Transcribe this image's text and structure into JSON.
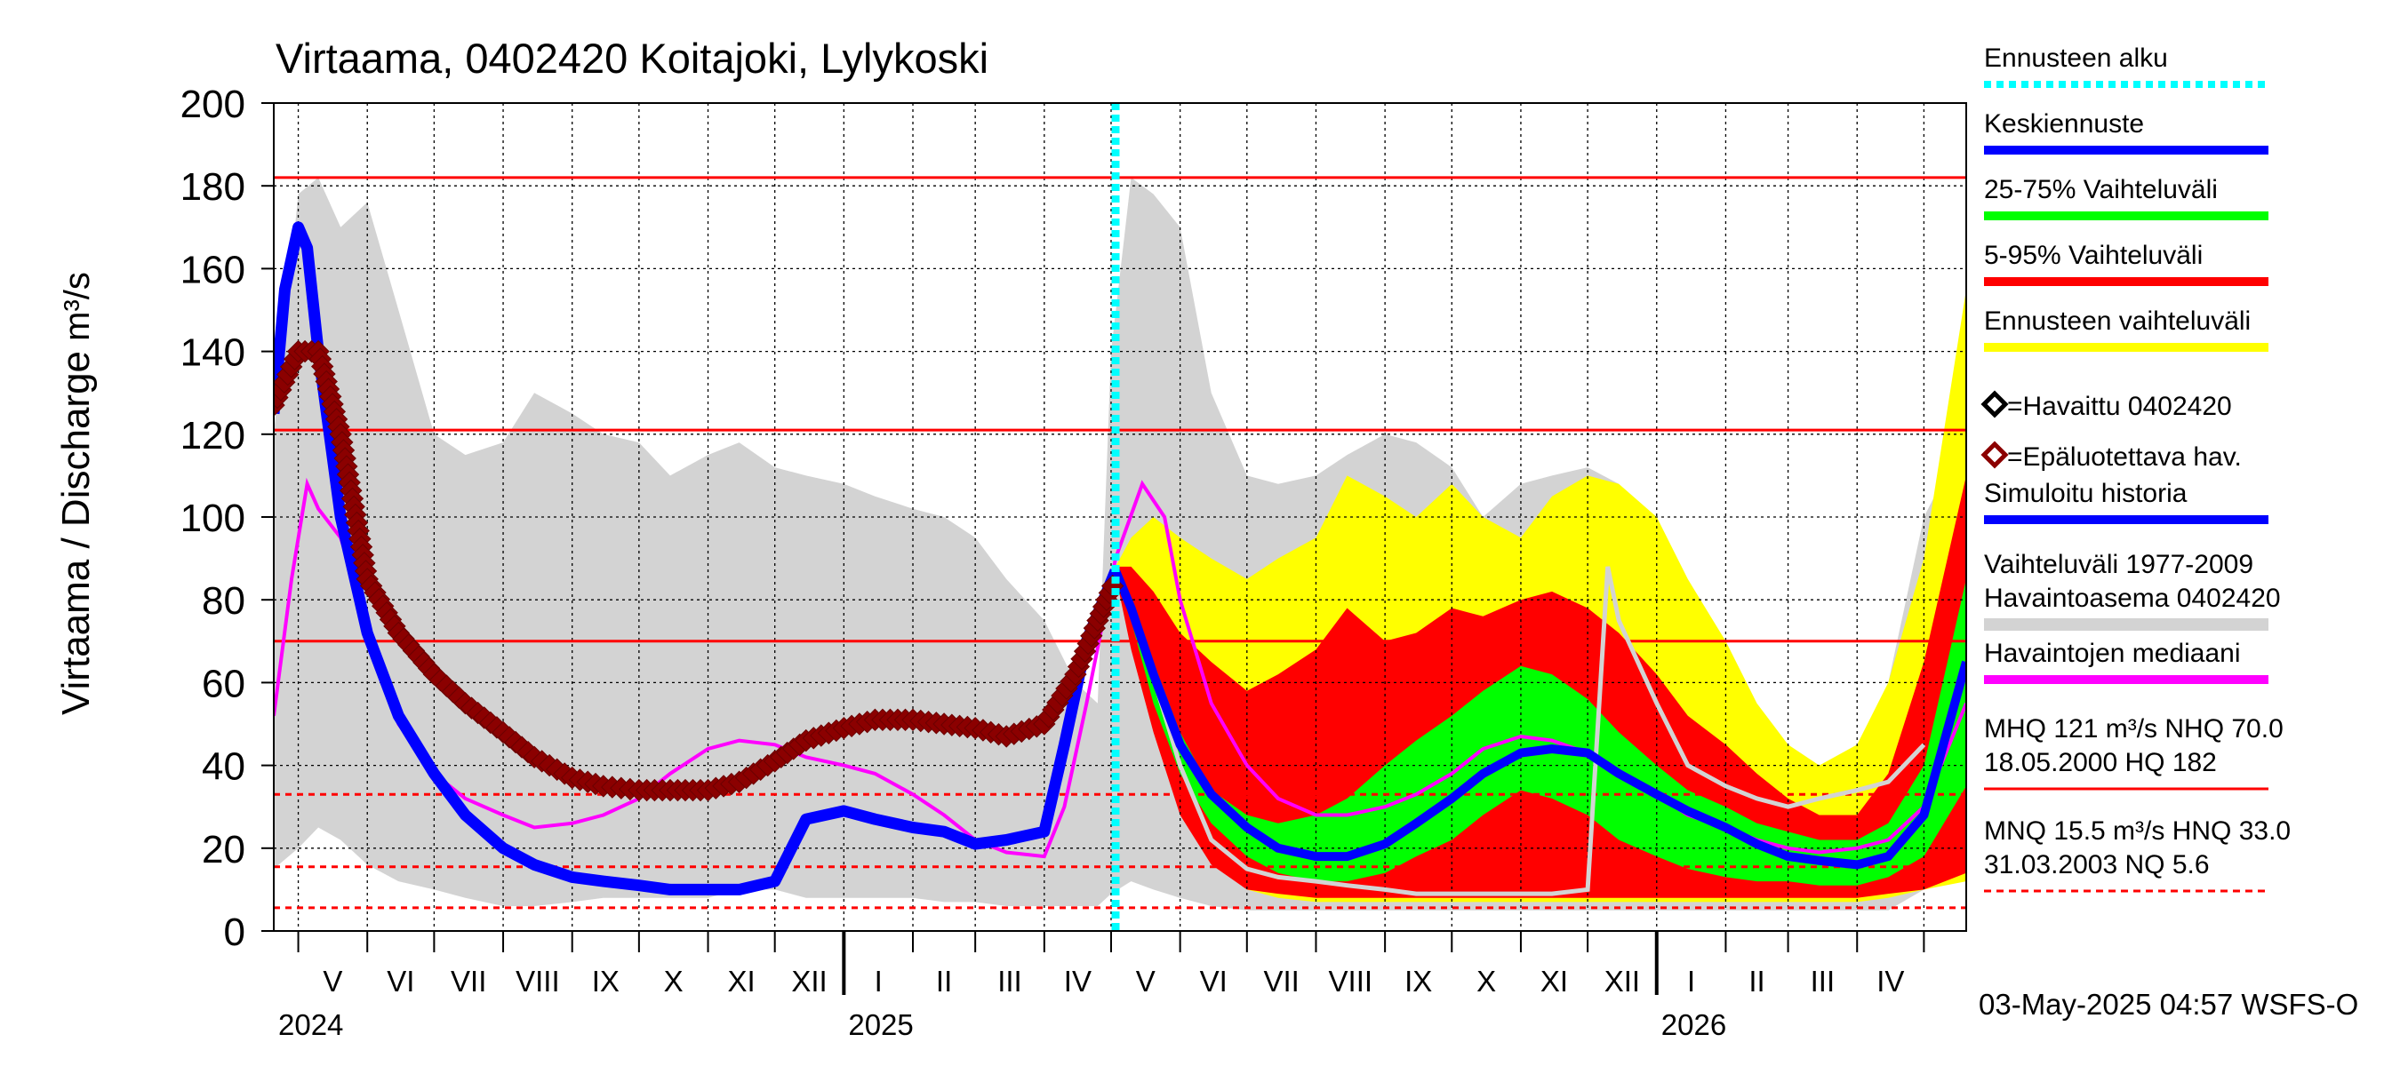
{
  "chart_data": {
    "type": "line",
    "title": "Virtaama, 0402420 Koitajoki, Lylykoski",
    "ylabel": "Virtaama / Discharge",
    "yunit": "m³/s",
    "ylim": [
      0,
      200
    ],
    "yticks": [
      0,
      20,
      40,
      60,
      80,
      100,
      120,
      140,
      160,
      180,
      200
    ],
    "x_start": "2024-04-20",
    "x_end": "2026-05-20",
    "forecast_start": "2025-05-03",
    "months": [
      {
        "label": "V",
        "start": "2024-05-01"
      },
      {
        "label": "VI",
        "start": "2024-06-01"
      },
      {
        "label": "VII",
        "start": "2024-07-01"
      },
      {
        "label": "VIII",
        "start": "2024-08-01"
      },
      {
        "label": "IX",
        "start": "2024-09-01"
      },
      {
        "label": "X",
        "start": "2024-10-01"
      },
      {
        "label": "XI",
        "start": "2024-11-01"
      },
      {
        "label": "XII",
        "start": "2024-12-01"
      },
      {
        "label": "I",
        "start": "2025-01-01"
      },
      {
        "label": "II",
        "start": "2025-02-01"
      },
      {
        "label": "III",
        "start": "2025-03-01"
      },
      {
        "label": "IV",
        "start": "2025-04-01"
      },
      {
        "label": "V",
        "start": "2025-05-01"
      },
      {
        "label": "VI",
        "start": "2025-06-01"
      },
      {
        "label": "VII",
        "start": "2025-07-01"
      },
      {
        "label": "VIII",
        "start": "2025-08-01"
      },
      {
        "label": "IX",
        "start": "2025-09-01"
      },
      {
        "label": "X",
        "start": "2025-10-01"
      },
      {
        "label": "XI",
        "start": "2025-11-01"
      },
      {
        "label": "XII",
        "start": "2025-12-01"
      },
      {
        "label": "I",
        "start": "2026-01-01"
      },
      {
        "label": "II",
        "start": "2026-02-01"
      },
      {
        "label": "III",
        "start": "2026-03-01"
      },
      {
        "label": "IV",
        "start": "2026-04-01"
      },
      {
        "label": "",
        "start": "2026-05-01"
      }
    ],
    "years": [
      {
        "label": "2024",
        "at": "2024-04-20",
        "tick": ""
      },
      {
        "label": "2025",
        "at": "2025-01-01",
        "tick": "2025-01-01"
      },
      {
        "label": "2026",
        "at": "2026-01-01",
        "tick": "2026-01-01"
      }
    ],
    "reference_lines": {
      "solid": [
        182,
        121,
        70
      ],
      "dashed": [
        33,
        15.5,
        5.6
      ]
    },
    "history_band": {
      "name": "Vaihteluväli 1977-2009 Havaintoasema 0402420",
      "color": "#d3d3d3",
      "x": [
        "2024-04-20",
        "2024-05-01",
        "2024-05-10",
        "2024-05-20",
        "2024-06-01",
        "2024-06-15",
        "2024-07-01",
        "2024-07-15",
        "2024-08-01",
        "2024-08-15",
        "2024-09-01",
        "2024-09-15",
        "2024-10-01",
        "2024-10-15",
        "2024-11-01",
        "2024-11-15",
        "2024-12-01",
        "2024-12-15",
        "2025-01-01",
        "2025-01-15",
        "2025-02-01",
        "2025-02-15",
        "2025-03-01",
        "2025-03-15",
        "2025-04-01",
        "2025-04-15",
        "2025-04-25",
        "2025-05-01",
        "2025-05-10",
        "2025-05-20",
        "2025-06-01",
        "2025-06-15",
        "2025-07-01",
        "2025-07-15",
        "2025-08-01",
        "2025-08-15",
        "2025-09-01",
        "2025-09-15",
        "2025-10-01",
        "2025-10-15",
        "2025-11-01",
        "2025-11-15",
        "2025-12-01",
        "2025-12-15",
        "2026-01-01",
        "2026-01-15",
        "2026-02-01",
        "2026-02-15",
        "2026-03-01",
        "2026-03-15",
        "2026-04-01",
        "2026-04-15",
        "2026-05-01",
        "2026-05-20"
      ],
      "high": [
        120,
        178,
        182,
        170,
        176,
        150,
        120,
        115,
        118,
        130,
        125,
        120,
        118,
        110,
        115,
        118,
        112,
        110,
        108,
        105,
        102,
        100,
        95,
        85,
        75,
        60,
        55,
        140,
        182,
        178,
        170,
        130,
        110,
        108,
        110,
        115,
        120,
        118,
        112,
        100,
        108,
        110,
        112,
        108,
        90,
        70,
        55,
        45,
        42,
        40,
        42,
        60,
        100,
        120
      ],
      "low": [
        15,
        20,
        25,
        22,
        16,
        12,
        10,
        8,
        6,
        6,
        7,
        8,
        8,
        8,
        8,
        10,
        10,
        8,
        8,
        8,
        8,
        7,
        7,
        6,
        6,
        6,
        6,
        9,
        12,
        10,
        8,
        6,
        5,
        5,
        5,
        5,
        5,
        5,
        5,
        5,
        5,
        5,
        5,
        5,
        5,
        5,
        5,
        5,
        5,
        5,
        5,
        5,
        10,
        20
      ]
    },
    "forecast_band_full": {
      "name": "Ennusteen vaihteluväli",
      "color": "#ffff00",
      "x": [
        "2025-05-03",
        "2025-05-10",
        "2025-05-20",
        "2025-06-01",
        "2025-06-15",
        "2025-07-01",
        "2025-07-15",
        "2025-08-01",
        "2025-08-15",
        "2025-09-01",
        "2025-09-15",
        "2025-10-01",
        "2025-10-15",
        "2025-11-01",
        "2025-11-15",
        "2025-12-01",
        "2025-12-15",
        "2026-01-01",
        "2026-01-15",
        "2026-02-01",
        "2026-02-15",
        "2026-03-01",
        "2026-03-15",
        "2026-04-01",
        "2026-04-15",
        "2026-05-01",
        "2026-05-20"
      ],
      "high": [
        88,
        95,
        100,
        95,
        90,
        85,
        90,
        95,
        110,
        105,
        100,
        108,
        100,
        95,
        105,
        110,
        108,
        100,
        85,
        70,
        55,
        45,
        40,
        45,
        60,
        90,
        155
      ],
      "low": [
        86,
        70,
        50,
        30,
        18,
        10,
        8,
        7,
        7,
        7,
        7,
        7,
        7,
        7,
        7,
        7,
        7,
        7,
        7,
        7,
        7,
        7,
        7,
        7,
        8,
        10,
        12
      ]
    },
    "band_5_95": {
      "name": "5-95% Vaihteluväli",
      "color": "#ff0000",
      "x": [
        "2025-05-03",
        "2025-05-10",
        "2025-05-20",
        "2025-06-01",
        "2025-06-15",
        "2025-07-01",
        "2025-07-15",
        "2025-08-01",
        "2025-08-15",
        "2025-09-01",
        "2025-09-15",
        "2025-10-01",
        "2025-10-15",
        "2025-11-01",
        "2025-11-15",
        "2025-12-01",
        "2025-12-15",
        "2026-01-01",
        "2026-01-15",
        "2026-02-01",
        "2026-02-15",
        "2026-03-01",
        "2026-03-15",
        "2026-04-01",
        "2026-04-15",
        "2026-05-01",
        "2026-05-20"
      ],
      "high": [
        88,
        88,
        82,
        72,
        65,
        58,
        62,
        68,
        78,
        70,
        72,
        78,
        76,
        80,
        82,
        78,
        72,
        62,
        52,
        45,
        38,
        32,
        28,
        28,
        38,
        65,
        110
      ],
      "low": [
        86,
        68,
        48,
        28,
        16,
        10,
        9,
        8,
        8,
        8,
        8,
        8,
        8,
        8,
        8,
        8,
        8,
        8,
        8,
        8,
        8,
        8,
        8,
        8,
        9,
        10,
        14
      ]
    },
    "band_25_75": {
      "name": "25-75% Vaihteluväli",
      "color": "#00ff00",
      "x": [
        "2025-05-03",
        "2025-05-10",
        "2025-05-20",
        "2025-06-01",
        "2025-06-15",
        "2025-07-01",
        "2025-07-15",
        "2025-08-01",
        "2025-08-15",
        "2025-09-01",
        "2025-09-15",
        "2025-10-01",
        "2025-10-15",
        "2025-11-01",
        "2025-11-15",
        "2025-12-01",
        "2025-12-15",
        "2026-01-01",
        "2026-01-15",
        "2026-02-01",
        "2026-02-15",
        "2026-03-01",
        "2026-03-15",
        "2026-04-01",
        "2026-04-15",
        "2026-05-01",
        "2026-05-20"
      ],
      "high": [
        87,
        80,
        65,
        48,
        34,
        28,
        26,
        28,
        32,
        40,
        46,
        52,
        58,
        64,
        62,
        56,
        48,
        40,
        34,
        30,
        26,
        24,
        22,
        22,
        26,
        40,
        85
      ],
      "low": [
        87,
        75,
        55,
        38,
        26,
        18,
        14,
        12,
        12,
        14,
        18,
        22,
        28,
        34,
        32,
        28,
        22,
        18,
        15,
        13,
        12,
        12,
        11,
        11,
        13,
        18,
        35
      ]
    },
    "series": [
      {
        "name": "Keskiennuste",
        "color": "#0000ff",
        "x": [
          "2025-05-03",
          "2025-05-10",
          "2025-05-20",
          "2025-06-01",
          "2025-06-15",
          "2025-07-01",
          "2025-07-15",
          "2025-08-01",
          "2025-08-15",
          "2025-09-01",
          "2025-09-15",
          "2025-10-01",
          "2025-10-15",
          "2025-11-01",
          "2025-11-15",
          "2025-12-01",
          "2025-12-15",
          "2026-01-01",
          "2026-01-15",
          "2026-02-01",
          "2026-02-15",
          "2026-03-01",
          "2026-03-15",
          "2026-04-01",
          "2026-04-15",
          "2026-05-01",
          "2026-05-20"
        ],
        "y": [
          87,
          78,
          62,
          45,
          33,
          25,
          20,
          18,
          18,
          21,
          26,
          32,
          38,
          43,
          44,
          43,
          38,
          33,
          29,
          25,
          21,
          18,
          17,
          16,
          18,
          28,
          65
        ]
      },
      {
        "name": "Simuloitu historia",
        "color": "#0000ff",
        "x": [
          "2024-04-20",
          "2024-04-25",
          "2024-05-01",
          "2024-05-05",
          "2024-05-10",
          "2024-05-20",
          "2024-06-01",
          "2024-06-15",
          "2024-07-01",
          "2024-07-15",
          "2024-08-01",
          "2024-08-15",
          "2024-09-01",
          "2024-09-15",
          "2024-10-01",
          "2024-10-15",
          "2024-11-01",
          "2024-11-15",
          "2024-12-01",
          "2024-12-15",
          "2025-01-01",
          "2025-01-15",
          "2025-02-01",
          "2025-02-15",
          "2025-03-01",
          "2025-03-15",
          "2025-04-01",
          "2025-04-10",
          "2025-04-20",
          "2025-05-03"
        ],
        "y": [
          125,
          155,
          170,
          165,
          140,
          100,
          72,
          52,
          38,
          28,
          20,
          16,
          13,
          12,
          11,
          10,
          10,
          10,
          12,
          27,
          29,
          27,
          25,
          24,
          21,
          22,
          24,
          45,
          70,
          87
        ]
      },
      {
        "name": "Havaintojen mediaani",
        "color": "#ff00ff",
        "x": [
          "2024-04-20",
          "2024-04-28",
          "2024-05-05",
          "2024-05-10",
          "2024-05-20",
          "2024-06-01",
          "2024-06-15",
          "2024-07-01",
          "2024-07-15",
          "2024-08-01",
          "2024-08-15",
          "2024-09-01",
          "2024-09-15",
          "2024-10-01",
          "2024-10-15",
          "2024-11-01",
          "2024-11-15",
          "2024-12-01",
          "2024-12-15",
          "2025-01-01",
          "2025-01-15",
          "2025-02-01",
          "2025-02-15",
          "2025-03-01",
          "2025-03-15",
          "2025-04-01",
          "2025-04-10",
          "2025-04-20",
          "2025-05-03",
          "2025-05-15",
          "2025-05-25",
          "2025-06-01",
          "2025-06-15",
          "2025-07-01",
          "2025-07-15",
          "2025-08-01",
          "2025-08-15",
          "2025-09-01",
          "2025-09-15",
          "2025-10-01",
          "2025-10-15",
          "2025-11-01",
          "2025-11-15",
          "2025-12-01",
          "2025-12-15",
          "2026-01-01",
          "2026-01-15",
          "2026-02-01",
          "2026-02-15",
          "2026-03-01",
          "2026-03-15",
          "2026-04-01",
          "2026-04-15",
          "2026-05-01",
          "2026-05-20"
        ],
        "y": [
          52,
          85,
          108,
          102,
          95,
          75,
          50,
          38,
          32,
          28,
          25,
          26,
          28,
          32,
          38,
          44,
          46,
          45,
          42,
          40,
          38,
          33,
          28,
          22,
          19,
          18,
          30,
          55,
          90,
          108,
          100,
          80,
          55,
          40,
          32,
          28,
          28,
          30,
          33,
          38,
          44,
          47,
          46,
          43,
          38,
          33,
          28,
          25,
          22,
          20,
          19,
          20,
          22,
          30,
          55
        ]
      },
      {
        "name": "Epäluotettava hav.",
        "color": "#8b0000",
        "x": [
          "2024-04-20",
          "2024-05-01",
          "2024-05-10",
          "2024-05-20",
          "2024-06-01",
          "2024-06-15",
          "2024-07-01",
          "2024-07-15",
          "2024-08-01",
          "2024-08-15",
          "2024-09-01",
          "2024-09-15",
          "2024-10-01",
          "2024-10-15",
          "2024-11-01",
          "2024-11-15",
          "2024-12-01",
          "2024-12-15",
          "2025-01-01",
          "2025-01-15",
          "2025-02-01",
          "2025-02-15",
          "2025-03-01",
          "2025-03-15",
          "2025-04-01",
          "2025-04-15",
          "2025-04-25",
          "2025-05-03"
        ],
        "y": [
          127,
          140,
          140,
          120,
          85,
          72,
          62,
          55,
          48,
          42,
          37,
          35,
          34,
          34,
          34,
          36,
          41,
          46,
          49,
          51,
          51,
          50,
          49,
          47,
          50,
          62,
          75,
          85
        ]
      },
      {
        "name": "Havaittu 0402420",
        "color": "#000000",
        "x": [],
        "y": []
      }
    ],
    "history_line": {
      "color": "#d3d3d3",
      "x": [
        "2025-05-03",
        "2025-05-15",
        "2025-06-01",
        "2025-06-15",
        "2025-07-01",
        "2025-07-15",
        "2025-08-01",
        "2025-08-15",
        "2025-09-01",
        "2025-09-15",
        "2025-10-01",
        "2025-10-15",
        "2025-11-01",
        "2025-11-15",
        "2025-12-01",
        "2025-12-10",
        "2025-12-15",
        "2026-01-01",
        "2026-01-15",
        "2026-02-01",
        "2026-02-15",
        "2026-03-01",
        "2026-03-15",
        "2026-04-01",
        "2026-04-15",
        "2026-05-01"
      ],
      "y": [
        87,
        70,
        40,
        22,
        15,
        13,
        12,
        11,
        10,
        9,
        9,
        9,
        9,
        9,
        10,
        88,
        75,
        55,
        40,
        35,
        32,
        30,
        32,
        34,
        36,
        45
      ]
    },
    "legend": [
      {
        "label": "Ennusteen alku",
        "kind": "dotted",
        "color": "#00ffff"
      },
      {
        "label": "Keskiennuste",
        "kind": "line",
        "color": "#0000ff"
      },
      {
        "label": "25-75% Vaihteluväli",
        "kind": "line",
        "color": "#00ff00"
      },
      {
        "label": "5-95% Vaihteluväli",
        "kind": "line",
        "color": "#ff0000"
      },
      {
        "label": "Ennusteen vaihteluväli",
        "kind": "line",
        "color": "#ffff00"
      },
      {
        "label": "=Havaittu 0402420",
        "kind": "marker",
        "color": "#000000"
      },
      {
        "label": "=Epäluotettava hav.",
        "kind": "marker",
        "color": "#8b0000"
      },
      {
        "label": "Simuloitu historia",
        "kind": "line",
        "color": "#0000ff"
      },
      {
        "label": "Vaihteluväli 1977-2009",
        "label2": " Havaintoasema 0402420",
        "kind": "line",
        "color": "#d3d3d3"
      },
      {
        "label": "Havaintojen mediaani",
        "kind": "line",
        "color": "#ff00ff"
      },
      {
        "label": "MHQ  121 m³/s NHQ 70.0",
        "label2": "18.05.2000 HQ  182",
        "kind": "line",
        "color": "#ff0000"
      },
      {
        "label": "MNQ 15.5 m³/s HNQ 33.0",
        "label2": "31.03.2003 NQ  5.6",
        "kind": "dashed",
        "color": "#ff0000"
      }
    ],
    "footer": "03-May-2025 04:57 WSFS-O"
  }
}
